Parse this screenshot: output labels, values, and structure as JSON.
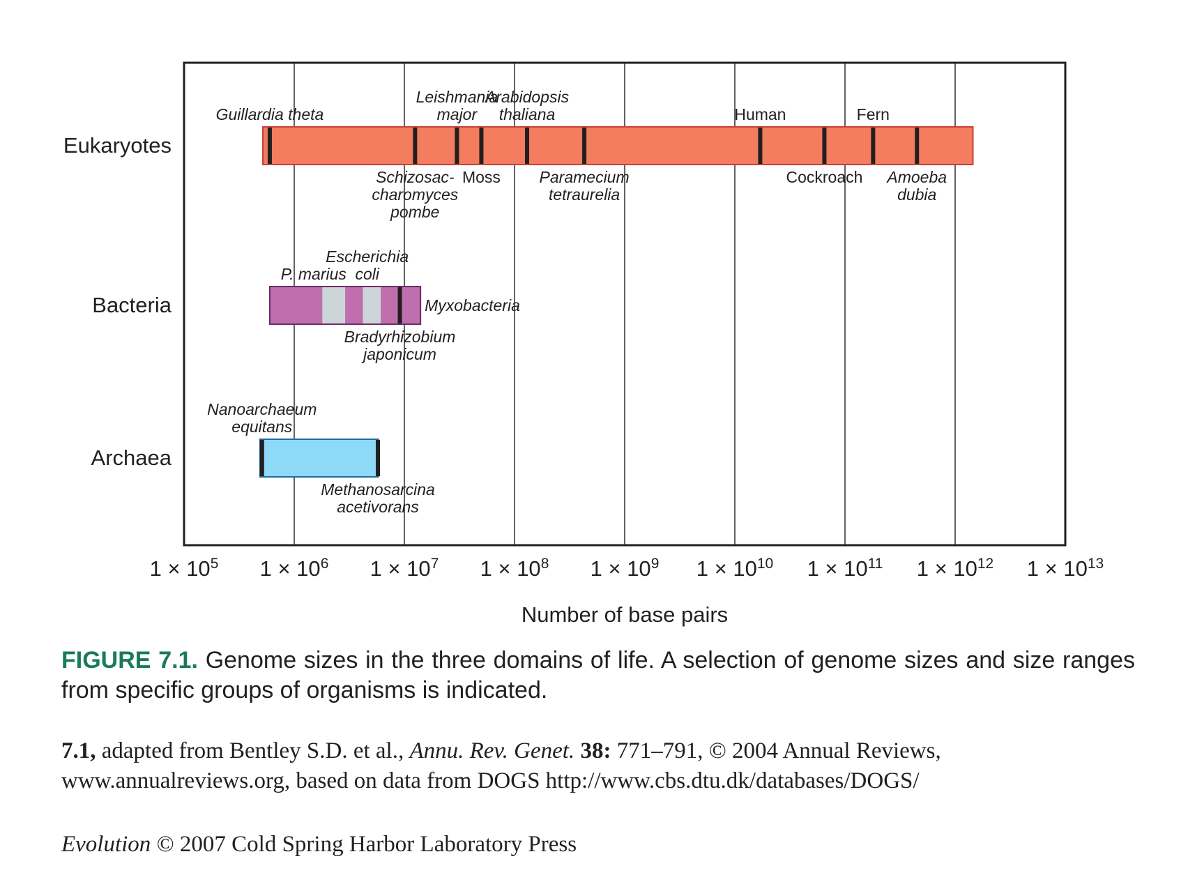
{
  "chart_data": {
    "type": "range",
    "xlabel": "Number of base pairs",
    "x_scale": "log10",
    "xlim": [
      100000,
      10000000000000
    ],
    "x_ticks": [
      {
        "value": 100000,
        "mantissa": "1",
        "times": "×",
        "base": "10",
        "exp": "5"
      },
      {
        "value": 1000000,
        "mantissa": "1",
        "times": "×",
        "base": "10",
        "exp": "6"
      },
      {
        "value": 10000000,
        "mantissa": "1",
        "times": "×",
        "base": "10",
        "exp": "7"
      },
      {
        "value": 100000000,
        "mantissa": "1",
        "times": "×",
        "base": "10",
        "exp": "8"
      },
      {
        "value": 1000000000,
        "mantissa": "1",
        "times": "×",
        "base": "10",
        "exp": "9"
      },
      {
        "value": 10000000000,
        "mantissa": "1",
        "times": "×",
        "base": "10",
        "exp": "10"
      },
      {
        "value": 100000000000,
        "mantissa": "1",
        "times": "×",
        "base": "10",
        "exp": "11"
      },
      {
        "value": 1000000000000,
        "mantissa": "1",
        "times": "×",
        "base": "10",
        "exp": "12"
      },
      {
        "value": 10000000000000,
        "mantissa": "1",
        "times": "×",
        "base": "10",
        "exp": "13"
      }
    ],
    "grid": "vertical",
    "domains": [
      {
        "name": "Eukaryotes",
        "color": "#f47c5f",
        "stroke": "#c8413b",
        "range": [
          520000,
          1450000000000
        ],
        "highlights": [],
        "markers": [
          {
            "label": [
              "Guillardia theta"
            ],
            "value": 600000,
            "side": "above"
          },
          {
            "label": [
              "Schizosac-",
              "charomyces",
              "pombe"
            ],
            "value": 12500000,
            "side": "below"
          },
          {
            "label": [
              "Leishmania",
              "major"
            ],
            "value": 30000000,
            "side": "above"
          },
          {
            "label": [
              "Moss"
            ],
            "value": 50000000,
            "side": "below"
          },
          {
            "label": [
              "Arabidopsis",
              "thaliana"
            ],
            "value": 130000000,
            "side": "above"
          },
          {
            "label": [
              "Paramecium",
              "tetraurelia"
            ],
            "value": 430000000,
            "side": "below"
          },
          {
            "label": [
              "Human"
            ],
            "value": 17000000000,
            "side": "above"
          },
          {
            "label": [
              "Cockroach"
            ],
            "value": 65000000000,
            "side": "below"
          },
          {
            "label": [
              "Fern"
            ],
            "value": 180000000000,
            "side": "above"
          },
          {
            "label": [
              "Amoeba",
              "dubia"
            ],
            "value": 450000000000,
            "side": "below"
          }
        ]
      },
      {
        "name": "Bacteria",
        "color": "#bf6fae",
        "stroke": "#6f2d6a",
        "range": [
          600000,
          14000000
        ],
        "highlights": [
          {
            "range": [
              1800000,
              2900000
            ],
            "color": "#ccd6d9"
          },
          {
            "range": [
              4200000,
              6100000
            ],
            "color": "#ccd6d9"
          }
        ],
        "markers": [
          {
            "label": [
              "P. marius"
            ],
            "value": 1500000,
            "side": "above",
            "tick": false
          },
          {
            "label": [
              "Escherichia",
              "coli"
            ],
            "value": 4600000,
            "side": "above",
            "tick": false
          },
          {
            "label": [
              "Bradyrhizobium",
              "japonicum"
            ],
            "value": 9100000,
            "side": "below"
          },
          {
            "label": [
              "Myxobacteria"
            ],
            "value": 14000000,
            "side": "right",
            "tick": false
          }
        ]
      },
      {
        "name": "Archaea",
        "color": "#8ed9f8",
        "stroke": "#1f6aa0",
        "range": [
          490000,
          5800000
        ],
        "highlights": [],
        "markers": [
          {
            "label": [
              "Nanoarchaeum",
              "equitans"
            ],
            "value": 510000,
            "side": "above"
          },
          {
            "label": [
              "Methanosarcina",
              "acetivorans"
            ],
            "value": 5750000,
            "side": "below"
          }
        ]
      }
    ]
  },
  "caption": {
    "label": "FIGURE 7.1.",
    "text": "Genome sizes in the three domains of life. A selection of genome sizes and size ranges from specific groups of organisms is indicated."
  },
  "credit": {
    "num": "7.1,",
    "part1": "adapted from Bentley S.D. et al.,",
    "journal": "Annu. Rev. Genet.",
    "volume": "38:",
    "part2": "771–791, © 2004 Annual Reviews, www.annualreviews.org, based on data from DOGS http://www.cbs.dtu.dk/databases/DOGS/"
  },
  "copyright": {
    "book": "Evolution",
    "text": "© 2007 Cold Spring Harbor Laboratory Press"
  }
}
